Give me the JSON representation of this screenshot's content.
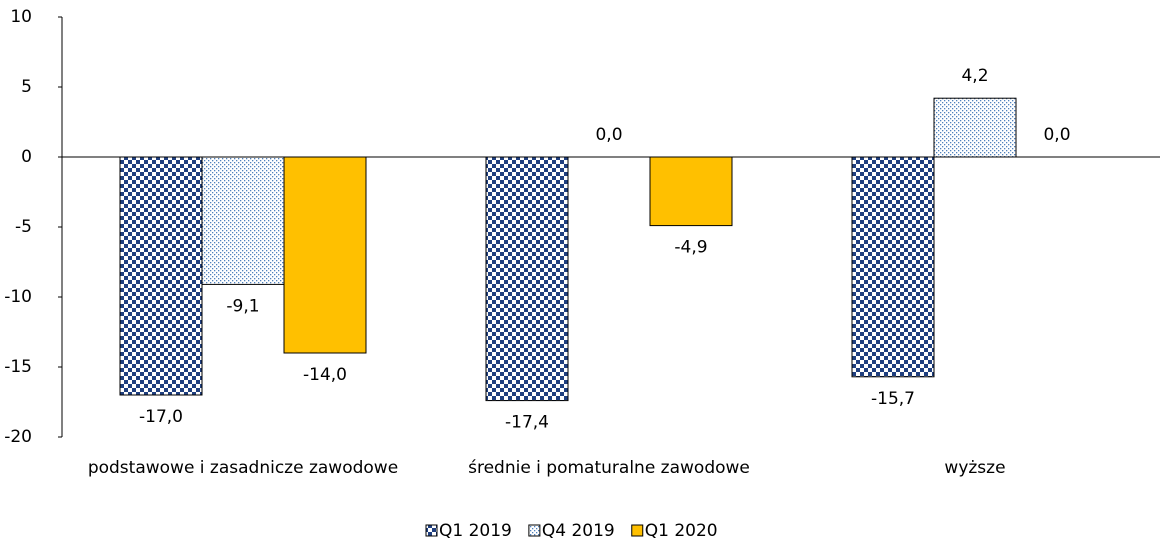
{
  "chart_data": {
    "type": "bar",
    "categories": [
      "podstawowe i zasadnicze zawodowe",
      "średnie i pomaturalne zawodowe",
      "wyższe"
    ],
    "series": [
      {
        "name": "Q1 2019",
        "color": "#1f3f7f",
        "values": [
          -17.0,
          -17.4,
          -15.7
        ],
        "value_labels": [
          "-17,0",
          "-17,4",
          "-15,7"
        ]
      },
      {
        "name": "Q4 2019",
        "color": "#4f81bd",
        "values": [
          -9.1,
          0.0,
          4.2
        ],
        "value_labels": [
          "-9,1",
          "0,0",
          "4,2"
        ]
      },
      {
        "name": "Q1 2020",
        "color": "#ffc000",
        "values": [
          -14.0,
          -4.9,
          0.0
        ],
        "value_labels": [
          "-14,0",
          "-4,9",
          "0,0"
        ]
      }
    ],
    "ylim": [
      -20,
      10
    ],
    "yticks": [
      -20,
      -15,
      -10,
      -5,
      0,
      5,
      10
    ],
    "grid": false,
    "legend": "bottom"
  }
}
